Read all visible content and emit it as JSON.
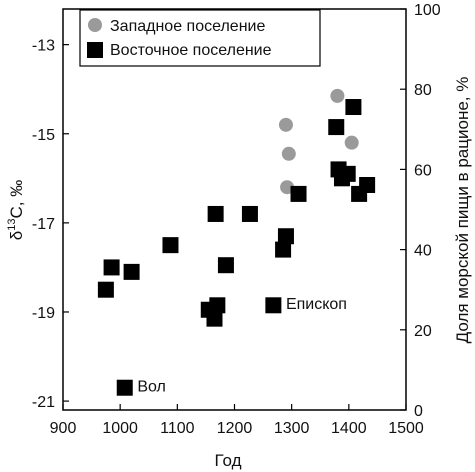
{
  "chart_data": {
    "type": "scatter",
    "title": "",
    "xlabel": "Год",
    "ylabel_left": "δ13C, ‰",
    "ylabel_left_base": "δ",
    "ylabel_left_sup": "13",
    "ylabel_left_rest": "C, ‰",
    "ylabel_right": "Доля морской пищи в рационе, %",
    "xlim": [
      900,
      1500
    ],
    "ylim": [
      -21.2,
      -12.2
    ],
    "y2lim": [
      0,
      100
    ],
    "xticks": [
      900,
      1000,
      1100,
      1200,
      1300,
      1400,
      1500
    ],
    "yticks": [
      -13,
      -15,
      -17,
      -19,
      -21
    ],
    "y2ticks": [
      0,
      20,
      40,
      60,
      80,
      100
    ],
    "legend_position": "top-left",
    "series": [
      {
        "name": "Западное поселение",
        "marker": "circle",
        "color": "#9a9a9a",
        "points": [
          {
            "x": 1290,
            "y": -14.8
          },
          {
            "x": 1295,
            "y": -15.45
          },
          {
            "x": 1292,
            "y": -16.2
          },
          {
            "x": 1380,
            "y": -14.15
          },
          {
            "x": 1405,
            "y": -15.2
          }
        ]
      },
      {
        "name": "Восточное поселение",
        "marker": "square",
        "color": "#000000",
        "points": [
          {
            "x": 975,
            "y": -18.5
          },
          {
            "x": 985,
            "y": -18.0
          },
          {
            "x": 1020,
            "y": -18.1
          },
          {
            "x": 1008,
            "y": -20.7
          },
          {
            "x": 1088,
            "y": -17.5
          },
          {
            "x": 1155,
            "y": -18.95
          },
          {
            "x": 1165,
            "y": -19.15
          },
          {
            "x": 1170,
            "y": -18.85
          },
          {
            "x": 1167,
            "y": -16.8
          },
          {
            "x": 1185,
            "y": -17.95
          },
          {
            "x": 1227,
            "y": -16.8
          },
          {
            "x": 1268,
            "y": -18.85
          },
          {
            "x": 1285,
            "y": -17.6
          },
          {
            "x": 1290,
            "y": -17.3
          },
          {
            "x": 1312,
            "y": -16.35
          },
          {
            "x": 1378,
            "y": -14.85
          },
          {
            "x": 1382,
            "y": -15.8
          },
          {
            "x": 1388,
            "y": -16.0
          },
          {
            "x": 1398,
            "y": -15.9
          },
          {
            "x": 1408,
            "y": -14.4
          },
          {
            "x": 1418,
            "y": -16.35
          },
          {
            "x": 1432,
            "y": -16.15
          }
        ]
      }
    ],
    "annotations": [
      {
        "text": "Вол",
        "x": 1030,
        "y": -20.65
      },
      {
        "text": "Епископ",
        "x": 1290,
        "y": -18.8
      }
    ]
  }
}
